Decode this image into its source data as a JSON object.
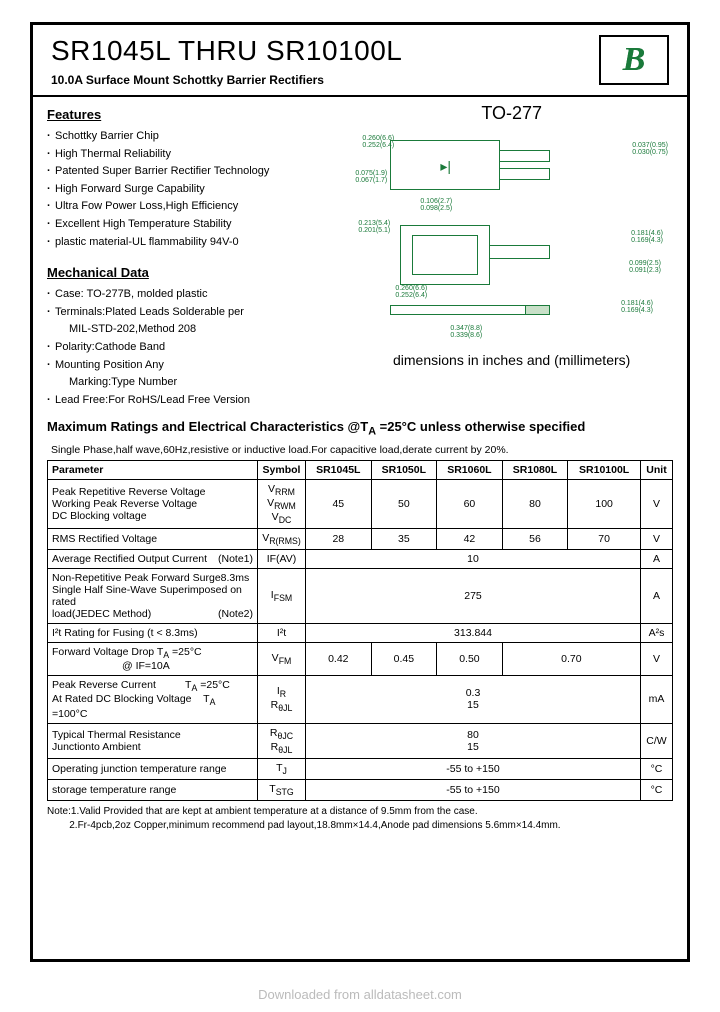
{
  "header": {
    "title": "SR1045L THRU SR10100L",
    "subtitle": "10.0A Surface Mount Schottky Barrier Rectifiers",
    "logo_letter": "B"
  },
  "features": {
    "heading": "Features",
    "items": [
      "Schottky Barrier Chip",
      "High Thermal Reliability",
      "Patented Super Barrier Rectifier Technology",
      "High Forward Surge Capability",
      "Ultra Fow Power Loss,High Efficiency",
      "Excellent High Temperature Stability",
      "plastic material-UL flammability 94V-0"
    ]
  },
  "mechanical": {
    "heading": "Mechanical Data",
    "items": [
      "Case: TO-277B, molded plastic",
      "Terminals:Plated Leads Solderable per MIL-STD-202,Method 208",
      "Polarity:Cathode Band",
      "Mounting Position Any Marking:Type Number",
      "Lead Free:For RoHS/Lead Free Version"
    ]
  },
  "package": {
    "name": "TO-277",
    "caption": "dimensions in inches and (millimeters)"
  },
  "ratings": {
    "title": "Maximum Ratings and Electrical Characteristics @TA =25°C unless otherwise specified",
    "note": "Single Phase,half wave,60Hz,resistive or inductive load.For capacitive load,derate current by 20%.",
    "columns": [
      "Parameter",
      "Symbol",
      "SR1045L",
      "SR1050L",
      "SR1060L",
      "SR1080L",
      "SR10100L",
      "Unit"
    ],
    "rows": [
      {
        "param": "Peak Repetitive Reverse Voltage<br>Working Peak Reverse Voltage<br>DC Blocking voltage",
        "symbol": "V<sub>RRM</sub><br>V<sub>RWM</sub><br>V<sub>DC</sub>",
        "v": [
          "45",
          "50",
          "60",
          "80",
          "100"
        ],
        "unit": "V"
      },
      {
        "param": "RMS Rectified Voltage",
        "symbol": "V<sub>R(RMS)</sub>",
        "v": [
          "28",
          "35",
          "42",
          "56",
          "70"
        ],
        "unit": "V"
      },
      {
        "param": "Average Rectified Output Current <span class='small-right'>(Note1)</span>",
        "symbol": "IF(AV)",
        "span": "10",
        "unit": "A"
      },
      {
        "param": "Non-Repetitive Peak Forward Surge8.3ms<br>Single Half Sine-Wave Superimposed on rated<br>load(JEDEC Method) <span class='small-right'>(Note2)</span>",
        "symbol": "I<sub>FSM</sub>",
        "span": "275",
        "unit": "A"
      },
      {
        "param": "I²t Rating for Fusing (t < 8.3ms)",
        "symbol": "I²t",
        "span": "313.844",
        "unit": "A²s"
      },
      {
        "param": "Forward Voltage Drop T<sub>A</sub> =25°C<br>&nbsp;&nbsp;&nbsp;&nbsp;&nbsp;&nbsp;&nbsp;&nbsp;&nbsp;&nbsp;&nbsp;&nbsp;&nbsp;&nbsp;&nbsp;&nbsp;&nbsp;&nbsp;&nbsp;&nbsp;&nbsp;&nbsp;&nbsp;&nbsp;@ IF=10A",
        "symbol": "V<sub>FM</sub>",
        "v": [
          "0.42",
          "0.45",
          "0.50",
          "0.70",
          "0.70"
        ],
        "merge45": true,
        "unit": "V"
      },
      {
        "param": "Peak Reverse Current&nbsp;&nbsp;&nbsp;&nbsp;&nbsp;&nbsp;&nbsp;&nbsp;&nbsp;&nbsp;T<sub>A</sub> =25°C<br>At Rated DC Blocking Voltage&nbsp;&nbsp;&nbsp;&nbsp;T<sub>A</sub> =100°C",
        "symbol": "I<sub>R</sub><br>R<sub>θJL</sub>",
        "span": "0.3<br>15",
        "unit": "mA"
      },
      {
        "param": "Typical Thermal Resistance<br>Junctionto Ambient",
        "symbol": "R<sub>θJC</sub><br>R<sub>θJL</sub>",
        "span": "80<br>15",
        "unit": "C/W"
      },
      {
        "param": "Operating junction temperature range",
        "symbol": "T<sub>J</sub>",
        "span": "-55 to +150",
        "unit": "°C"
      },
      {
        "param": "storage temperature range",
        "symbol": "T<sub>STG</sub>",
        "span": "-55 to +150",
        "unit": "°C"
      }
    ],
    "footnote": "Note:1.Valid Provided that are kept at ambient temperature at a distance of 9.5mm from the case.<br>&nbsp;&nbsp;&nbsp;&nbsp;&nbsp;&nbsp;&nbsp;&nbsp;2.Fr-4pcb,2oz Copper,minimum recommend pad layout,18.8mm×14.4,Anode pad dimensions 5.6mm×14.4mm."
  },
  "watermark": "Downloaded from alldatasheet.com"
}
